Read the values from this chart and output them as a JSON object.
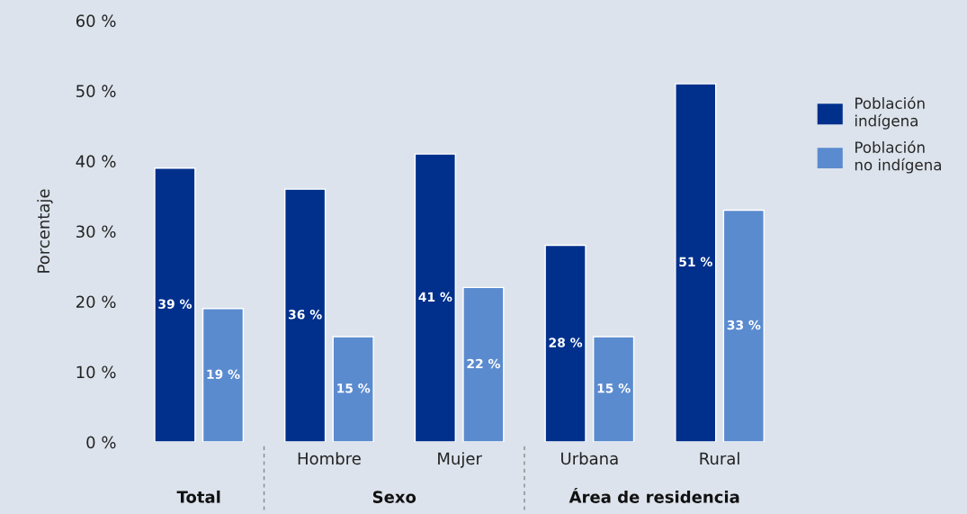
{
  "chart_data": {
    "type": "bar",
    "ylabel": "Porcentaje",
    "categories": [
      null,
      "Hombre",
      "Mujer",
      "Urbana",
      "Rural"
    ],
    "series": [
      {
        "name": "Población indígena",
        "color": "#00308c",
        "values": [
          39,
          36,
          41,
          28,
          51
        ],
        "value_labels": [
          "39 %",
          "36 %",
          "41 %",
          "28 %",
          "51 %"
        ]
      },
      {
        "name": "Población no indígena",
        "color": "#5b8bcf",
        "values": [
          19,
          15,
          22,
          15,
          33
        ],
        "value_labels": [
          "19 %",
          "15 %",
          "22 %",
          "15 %",
          "33 %"
        ]
      }
    ],
    "ylim": [
      0,
      60
    ],
    "yticks": [
      {
        "value": 0,
        "label": "0 %"
      },
      {
        "value": 10,
        "label": "10 %"
      },
      {
        "value": 20,
        "label": "20 %"
      },
      {
        "value": 30,
        "label": "30 %"
      },
      {
        "value": 40,
        "label": "40 %"
      },
      {
        "value": 50,
        "label": "50 %"
      },
      {
        "value": 60,
        "label": "60 %"
      }
    ],
    "annotations": [
      "Total",
      "Sexo",
      "Área de residencia"
    ],
    "grid": false,
    "legend": "right"
  }
}
